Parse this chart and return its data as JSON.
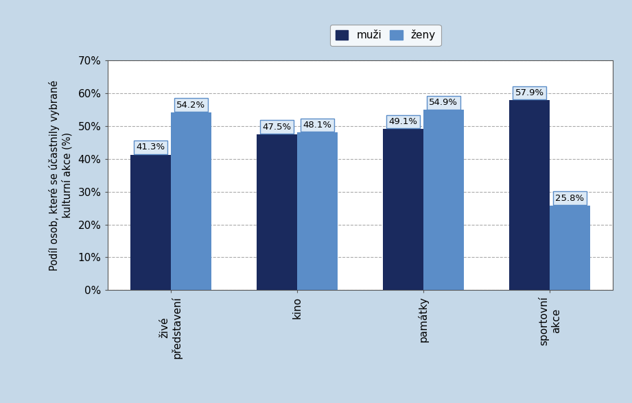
{
  "categories": [
    "živé\npředstavení",
    "kino",
    "památky",
    "sportovní\nakce"
  ],
  "muzi": [
    41.3,
    47.5,
    49.1,
    57.9
  ],
  "zeny": [
    54.2,
    48.1,
    54.9,
    25.8
  ],
  "muzi_label": "muži",
  "zeny_label": "ženy",
  "muzi_color": "#1a2a5e",
  "zeny_color": "#5b8dc8",
  "ylabel": "Podíl osob, které se účastnily vybrané\nkulturní akce (%)",
  "ylim": [
    0,
    70
  ],
  "yticks": [
    0,
    10,
    20,
    30,
    40,
    50,
    60,
    70
  ],
  "ytick_labels": [
    "0%",
    "10%",
    "20%",
    "30%",
    "40%",
    "50%",
    "60%",
    "70%"
  ],
  "background_color": "#c5d8e8",
  "plot_background_color": "#ffffff",
  "bar_width": 0.32,
  "label_fontsize": 9.5,
  "tick_fontsize": 11,
  "ylabel_fontsize": 10.5,
  "legend_fontsize": 11,
  "annotation_bg_color": "#dce9f5",
  "annotation_border_color": "#5b8dc8",
  "grid_color": "#aaaaaa",
  "grid_linestyle": "--",
  "grid_linewidth": 0.8,
  "spine_color": "#555555"
}
